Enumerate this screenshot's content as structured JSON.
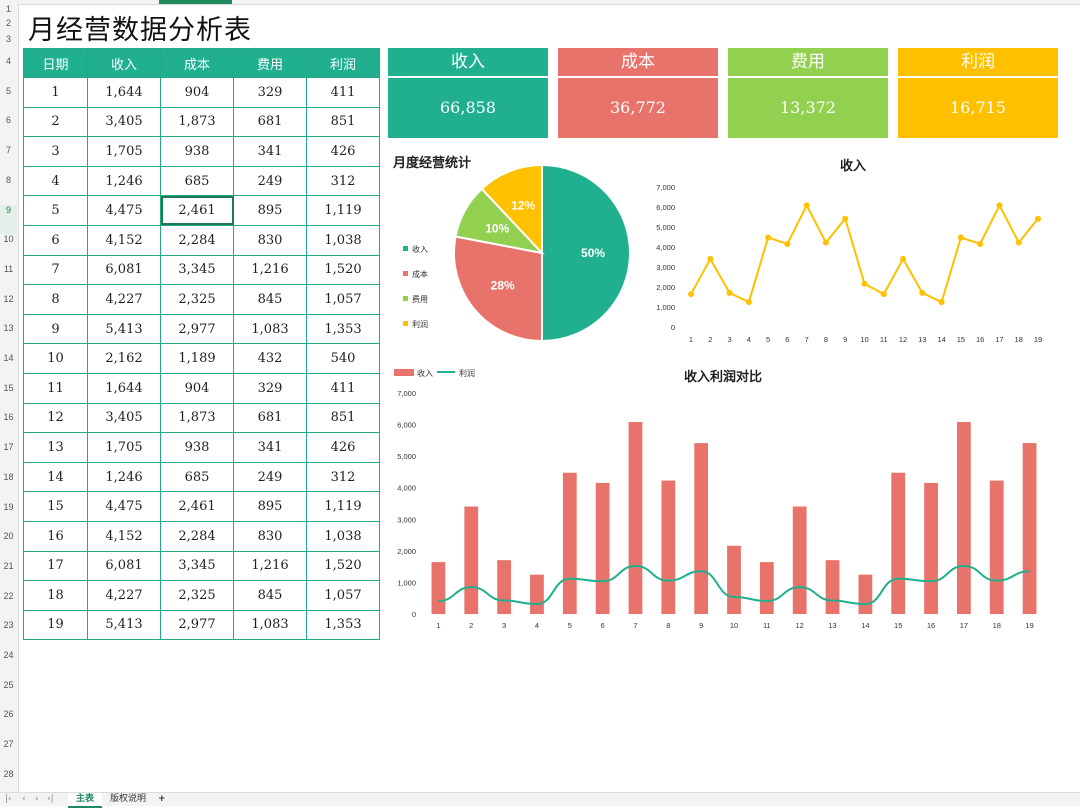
{
  "title": "月经营数据分析表",
  "table": {
    "headers": [
      "日期",
      "收入",
      "成本",
      "费用",
      "利润"
    ],
    "rows": [
      [
        "1",
        "1,644",
        "904",
        "329",
        "411"
      ],
      [
        "2",
        "3,405",
        "1,873",
        "681",
        "851"
      ],
      [
        "3",
        "1,705",
        "938",
        "341",
        "426"
      ],
      [
        "4",
        "1,246",
        "685",
        "249",
        "312"
      ],
      [
        "5",
        "4,475",
        "2,461",
        "895",
        "1,119"
      ],
      [
        "6",
        "4,152",
        "2,284",
        "830",
        "1,038"
      ],
      [
        "7",
        "6,081",
        "3,345",
        "1,216",
        "1,520"
      ],
      [
        "8",
        "4,227",
        "2,325",
        "845",
        "1,057"
      ],
      [
        "9",
        "5,413",
        "2,977",
        "1,083",
        "1,353"
      ],
      [
        "10",
        "2,162",
        "1,189",
        "432",
        "540"
      ],
      [
        "11",
        "1,644",
        "904",
        "329",
        "411"
      ],
      [
        "12",
        "3,405",
        "1,873",
        "681",
        "851"
      ],
      [
        "13",
        "1,705",
        "938",
        "341",
        "426"
      ],
      [
        "14",
        "1,246",
        "685",
        "249",
        "312"
      ],
      [
        "15",
        "4,475",
        "2,461",
        "895",
        "1,119"
      ],
      [
        "16",
        "4,152",
        "2,284",
        "830",
        "1,038"
      ],
      [
        "17",
        "6,081",
        "3,345",
        "1,216",
        "1,520"
      ],
      [
        "18",
        "4,227",
        "2,325",
        "845",
        "1,057"
      ],
      [
        "19",
        "5,413",
        "2,977",
        "1,083",
        "1,353"
      ]
    ],
    "selected_cell": "2,461"
  },
  "cards": [
    {
      "label": "收入",
      "value": "66,858",
      "color": "#20b08f"
    },
    {
      "label": "成本",
      "value": "36,772",
      "color": "#e8736a"
    },
    {
      "label": "费用",
      "value": "13,372",
      "color": "#92d050"
    },
    {
      "label": "利润",
      "value": "16,715",
      "color": "#ffc000"
    }
  ],
  "row_numbers": [
    "1",
    "2",
    "3",
    "4",
    "5",
    "6",
    "7",
    "8",
    "9",
    "10",
    "11",
    "12",
    "13",
    "14",
    "15",
    "16",
    "17",
    "18",
    "19",
    "20",
    "21",
    "22",
    "23",
    "24",
    "25",
    "26",
    "27",
    "28"
  ],
  "active_row": "9",
  "tabs": {
    "active": "主表",
    "second": "版权说明",
    "add": "+"
  },
  "chart_data": [
    {
      "type": "pie",
      "title": "月度经营统计",
      "categories": [
        "收入",
        "成本",
        "费用",
        "利润"
      ],
      "values": [
        50,
        28,
        10,
        12
      ],
      "data_labels": [
        "50%",
        "28%",
        "10%",
        "12%"
      ],
      "colors": [
        "#20b08f",
        "#e8736a",
        "#92d050",
        "#ffc000"
      ],
      "legend": "left"
    },
    {
      "type": "line",
      "title": "收入",
      "x": [
        "1",
        "2",
        "3",
        "4",
        "5",
        "6",
        "7",
        "8",
        "9",
        "10",
        "11",
        "12",
        "13",
        "14",
        "15",
        "16",
        "17",
        "18",
        "19"
      ],
      "series": [
        {
          "values": [
            1644,
            3405,
            1705,
            1246,
            4475,
            4152,
            6081,
            4227,
            5413,
            2162,
            1644,
            3405,
            1705,
            1246,
            4475,
            4152,
            6081,
            4227,
            5413
          ],
          "color": "#ffc000"
        }
      ],
      "ylim": [
        0,
        7000
      ],
      "yticks": [
        "0",
        "1,000",
        "2,000",
        "3,000",
        "4,000",
        "5,000",
        "6,000",
        "7,000"
      ],
      "grid": false
    },
    {
      "type": "bar",
      "title": "收入利润对比",
      "categories": [
        "1",
        "2",
        "3",
        "4",
        "5",
        "6",
        "7",
        "8",
        "9",
        "10",
        "11",
        "12",
        "13",
        "14",
        "15",
        "16",
        "17",
        "18",
        "19"
      ],
      "series": [
        {
          "name": "收入",
          "type": "bar",
          "color": "#e8736a",
          "values": [
            1644,
            3405,
            1705,
            1246,
            4475,
            4152,
            6081,
            4227,
            5413,
            2162,
            1644,
            3405,
            1705,
            1246,
            4475,
            4152,
            6081,
            4227,
            5413
          ]
        },
        {
          "name": "利润",
          "type": "line",
          "color": "#20b08f",
          "values": [
            411,
            851,
            426,
            312,
            1119,
            1038,
            1520,
            1057,
            1353,
            540,
            411,
            851,
            426,
            312,
            1119,
            1038,
            1520,
            1057,
            1353
          ]
        }
      ],
      "ylim": [
        0,
        7000
      ],
      "yticks": [
        "0",
        "1,000",
        "2,000",
        "3,000",
        "4,000",
        "5,000",
        "6,000",
        "7,000"
      ],
      "legend": "top-left",
      "grid": false
    }
  ]
}
